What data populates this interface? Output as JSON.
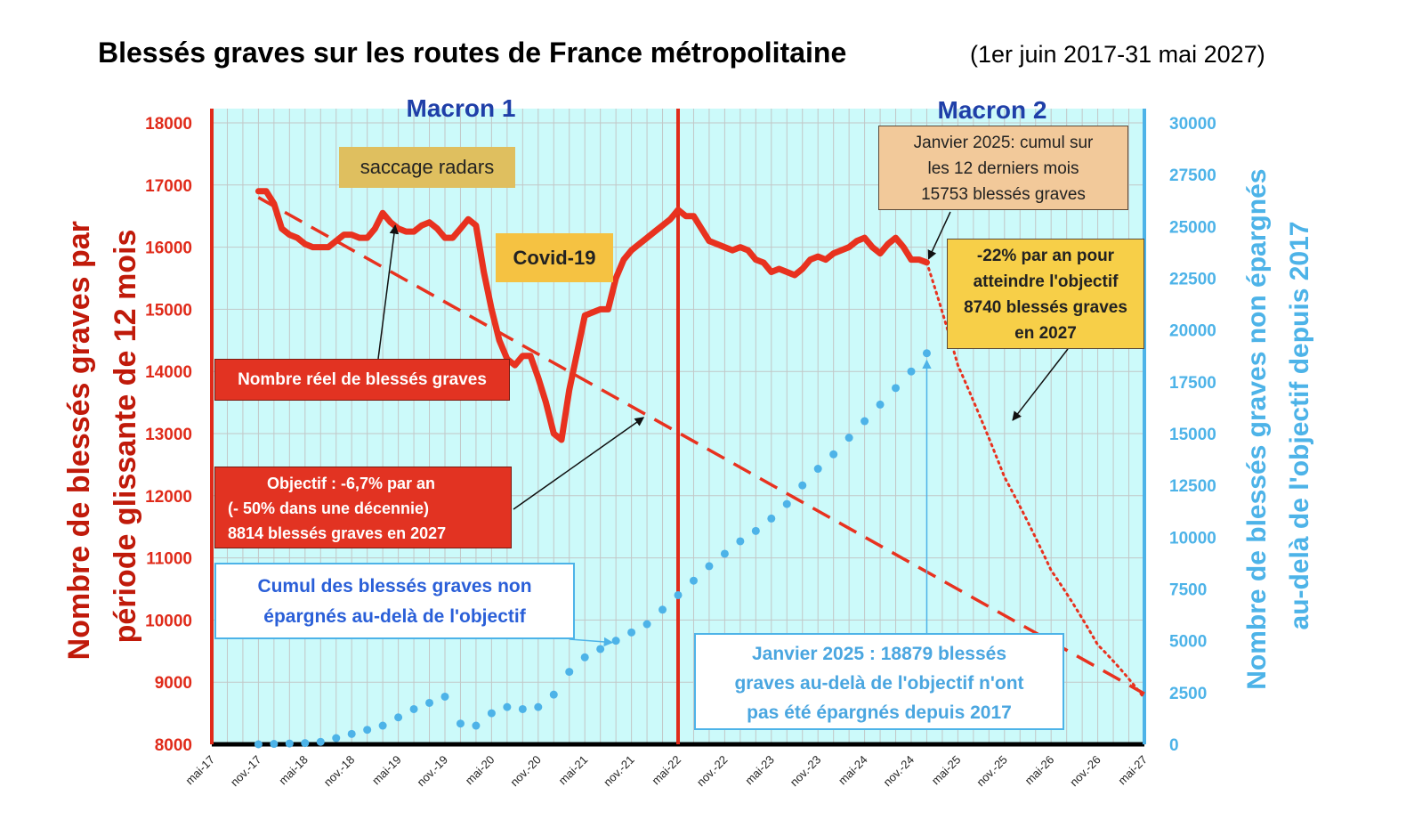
{
  "title": "Blessés graves sur les routes de France métropolitaine",
  "subtitle": "(1er juin 2017-31 mai 2027)",
  "colors": {
    "plot_bg": "#ccfafa",
    "grid": "#c2c7c7",
    "real_line": "#e8321f",
    "objective_line": "#e8321f",
    "projection_line": "#e8321f",
    "cumul_dots": "#4db3e8",
    "left_axis": "#e02b1a",
    "right_axis": "#4db3e8",
    "period_label": "#1f3fa8",
    "box_radars": "#dfbf5f",
    "box_covid": "#f5c242",
    "box_jan2025": "#f2c99a",
    "box_objective22": "#f7cf48",
    "box_real": "#e23322",
    "box_objective": "#e23322"
  },
  "periods": {
    "macron1": "Macron 1",
    "macron2": "Macron 2"
  },
  "annotations": {
    "radars": "saccage radars",
    "covid": "Covid-19",
    "jan2025_cumul": [
      "Janvier 2025: cumul sur",
      "les 12 derniers mois",
      "15753 blessés graves"
    ],
    "objective22": [
      "-22% par an pour",
      "atteindre l'objectif",
      "8740 blessés graves",
      "en 2027"
    ],
    "real_label": "Nombre réel de blessés graves",
    "objective_label": [
      "Objectif : -6,7% par an",
      "(- 50% dans une décennie)",
      "8814 blessés graves en 2027"
    ],
    "cumul_label": [
      "Cumul des blessés graves non",
      "épargnés  au-delà de l'objectif"
    ],
    "jan2025_excess": [
      "Janvier 2025 : 18879 blessés",
      "graves au-delà de l'objectif n'ont",
      "pas été épargnés depuis 2017"
    ]
  },
  "chart_data": {
    "type": "line",
    "title": "Blessés graves sur les routes de France métropolitaine",
    "subtitle": "(1er juin 2017-31 mai 2027)",
    "xlabel": "",
    "ylabel_left": [
      "Nombre de blessés graves par",
      "période glissante de 12 mois"
    ],
    "ylabel_right": [
      "Nombre de blessés graves non épargnés",
      "au-delà de l'objectif depuis 2017"
    ],
    "x_ticks": [
      "mai-17",
      "nov.-17",
      "mai-18",
      "nov.-18",
      "mai-19",
      "nov.-19",
      "mai-20",
      "nov.-20",
      "mai-21",
      "nov.-21",
      "mai-22",
      "nov.-22",
      "mai-23",
      "nov.-23",
      "mai-24",
      "nov.-24",
      "mai-25",
      "nov.-25",
      "mai-26",
      "nov.-26",
      "mai-27"
    ],
    "ylim_left": [
      8000,
      18000
    ],
    "yticks_left": [
      8000,
      9000,
      10000,
      11000,
      12000,
      13000,
      14000,
      15000,
      16000,
      17000,
      18000
    ],
    "ylim_right": [
      0,
      30000
    ],
    "yticks_right": [
      0,
      2500,
      5000,
      7500,
      10000,
      12500,
      15000,
      17500,
      20000,
      22500,
      25000,
      27500,
      30000
    ],
    "grid": true,
    "vertical_markers": [
      "mai-17",
      "mai-22"
    ],
    "series": [
      {
        "name": "Nombre réel de blessés graves",
        "axis": "left",
        "style": "solid",
        "x": [
          "nov.-17",
          "déc.-17",
          "janv.-18",
          "févr.-18",
          "mars-18",
          "avr.-18",
          "mai-18",
          "juin-18",
          "juil.-18",
          "août-18",
          "sept.-18",
          "oct.-18",
          "nov.-18",
          "déc.-18",
          "janv.-19",
          "févr.-19",
          "mars-19",
          "avr.-19",
          "mai-19",
          "juin-19",
          "juil.-19",
          "août-19",
          "sept.-19",
          "oct.-19",
          "nov.-19",
          "déc.-19",
          "janv.-20",
          "févr.-20",
          "mars-20",
          "avr.-20",
          "mai-20",
          "juin-20",
          "juil.-20",
          "août-20",
          "sept.-20",
          "oct.-20",
          "nov.-20",
          "déc.-20",
          "janv.-21",
          "févr.-21",
          "mars-21",
          "avr.-21",
          "mai-21",
          "juin-21",
          "juil.-21",
          "août-21",
          "sept.-21",
          "oct.-21",
          "nov.-21",
          "déc.-21",
          "janv.-22",
          "févr.-22",
          "mars-22",
          "avr.-22",
          "mai-22",
          "juin-22",
          "juil.-22",
          "août-22",
          "sept.-22",
          "oct.-22",
          "nov.-22",
          "déc.-22",
          "janv.-23",
          "févr.-23",
          "mars-23",
          "avr.-23",
          "mai-23",
          "juin-23",
          "juil.-23",
          "août-23",
          "sept.-23",
          "oct.-23",
          "nov.-23",
          "déc.-23",
          "janv.-24",
          "févr.-24",
          "mars-24",
          "avr.-24",
          "mai-24",
          "juin-24",
          "juil.-24",
          "août-24",
          "sept.-24",
          "oct.-24",
          "nov.-24",
          "déc.-24",
          "janv.-25"
        ],
        "values": [
          16900,
          16900,
          16700,
          16300,
          16200,
          16150,
          16050,
          16000,
          16000,
          16000,
          16100,
          16200,
          16200,
          16150,
          16150,
          16300,
          16550,
          16400,
          16300,
          16250,
          16250,
          16350,
          16400,
          16300,
          16150,
          16150,
          16300,
          16450,
          16350,
          15600,
          15000,
          14500,
          14200,
          14100,
          14250,
          14250,
          13900,
          13500,
          13000,
          12900,
          13700,
          14300,
          14900,
          14950,
          15000,
          15000,
          15500,
          15800,
          15950,
          16050,
          16150,
          16250,
          16350,
          16450,
          16600,
          16500,
          16500,
          16300,
          16100,
          16050,
          16000,
          15950,
          16000,
          15950,
          15800,
          15750,
          15600,
          15650,
          15600,
          15550,
          15650,
          15800,
          15850,
          15800,
          15900,
          15950,
          16000,
          16100,
          16150,
          16000,
          15900,
          16050,
          16150,
          16000,
          15800,
          15800,
          15753
        ]
      },
      {
        "name": "Objectif : -6,7% par an",
        "axis": "left",
        "style": "dashed",
        "x": [
          "nov.-17",
          "mai-27"
        ],
        "values": [
          16800,
          8814
        ]
      },
      {
        "name": "-22% par an pour atteindre l'objectif",
        "axis": "left",
        "style": "dotted",
        "x": [
          "janv.-25",
          "mai-25",
          "nov.-25",
          "mai-26",
          "nov.-26",
          "mai-27"
        ],
        "values": [
          15753,
          14100,
          12300,
          10800,
          9600,
          8740
        ]
      },
      {
        "name": "Cumul des blessés graves non épargnés au-delà de l'objectif",
        "axis": "right",
        "style": "dots",
        "x": [
          "nov.-17",
          "janv.-18",
          "mars-18",
          "mai-18",
          "juil.-18",
          "sept.-18",
          "nov.-18",
          "janv.-19",
          "mars-19",
          "mai-19",
          "juil.-19",
          "sept.-19",
          "nov.-19",
          "janv.-20",
          "mars-20",
          "mai-20",
          "juil.-20",
          "sept.-20",
          "nov.-20",
          "janv.-21",
          "mars-21",
          "mai-21",
          "juil.-21",
          "sept.-21",
          "nov.-21",
          "janv.-22",
          "mars-22",
          "mai-22",
          "juil.-22",
          "sept.-22",
          "nov.-22",
          "janv.-23",
          "mars-23",
          "mai-23",
          "juil.-23",
          "sept.-23",
          "nov.-23",
          "janv.-24",
          "mars-24",
          "mai-24",
          "juil.-24",
          "sept.-24",
          "nov.-24",
          "janv.-25"
        ],
        "values": [
          0,
          20,
          40,
          60,
          120,
          300,
          500,
          700,
          900,
          1300,
          1700,
          2000,
          2300,
          1000,
          900,
          1500,
          1800,
          1700,
          1800,
          2400,
          3500,
          4200,
          4600,
          5000,
          5400,
          5800,
          6500,
          7200,
          7900,
          8600,
          9200,
          9800,
          10300,
          10900,
          11600,
          12500,
          13300,
          14000,
          14800,
          15600,
          16400,
          17200,
          18000,
          18879
        ]
      }
    ]
  }
}
